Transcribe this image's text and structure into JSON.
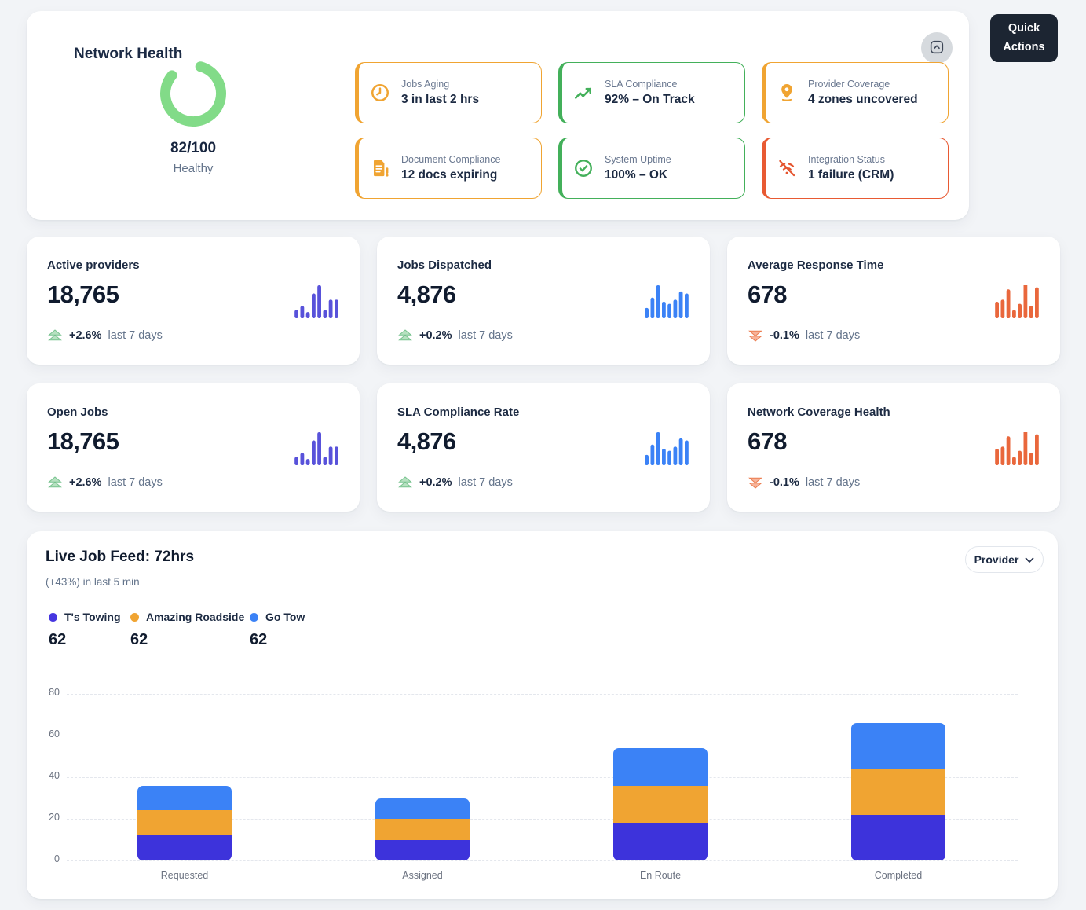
{
  "health": {
    "title": "Network Health",
    "gauge": {
      "score": "82/100",
      "status": "Healthy",
      "value": 82,
      "max": 100,
      "color": "#82db88"
    },
    "tiles": [
      {
        "label": "Jobs Aging",
        "value": "3 in last 2 hrs",
        "color": "#f0a432",
        "icon": "clock-icon"
      },
      {
        "label": "SLA Compliance",
        "value": "92% – On Track",
        "color": "#43b05a",
        "icon": "trend-chart-icon"
      },
      {
        "label": "Provider Coverage",
        "value": "4 zones uncovered",
        "color": "#f0a432",
        "icon": "location-pin-icon"
      },
      {
        "label": "Document Compliance",
        "value": "12 docs expiring",
        "color": "#f0a432",
        "icon": "document-alert-icon"
      },
      {
        "label": "System Uptime",
        "value": "100% – OK",
        "color": "#43b05a",
        "icon": "check-circle-icon"
      },
      {
        "label": "Integration Status",
        "value": "1 failure (CRM)",
        "color": "#e85a33",
        "icon": "antenna-slash-icon"
      }
    ]
  },
  "quick_actions_label": "Quick Actions",
  "kpis": [
    {
      "title": "Active providers",
      "value": "18,765",
      "delta": "+2.6%",
      "delta_dir": "up",
      "period": "last 7 days",
      "spark_color": "#5852da",
      "spark": [
        2,
        3,
        1.5,
        6,
        8,
        2,
        4.5,
        4.5
      ]
    },
    {
      "title": "Jobs Dispatched",
      "value": "4,876",
      "delta": "+0.2%",
      "delta_dir": "up",
      "period": "last 7 days",
      "spark_color": "#3b82f6",
      "spark": [
        2.5,
        5,
        8,
        4,
        3.5,
        4.5,
        6.5,
        6
      ]
    },
    {
      "title": "Average Response Time",
      "value": "678",
      "delta": "-0.1%",
      "delta_dir": "down",
      "period": "last 7 days",
      "spark_color": "#e9673c",
      "spark": [
        4,
        4.5,
        7,
        2,
        3.5,
        8.5,
        3,
        7.5
      ]
    },
    {
      "title": "Open Jobs",
      "value": "18,765",
      "delta": "+2.6%",
      "delta_dir": "up",
      "period": "last 7 days",
      "spark_color": "#5852da",
      "spark": [
        2,
        3,
        1.5,
        6,
        8,
        2,
        4.5,
        4.5
      ]
    },
    {
      "title": "SLA Compliance Rate",
      "value": "4,876",
      "delta": "+0.2%",
      "delta_dir": "up",
      "period": "last 7 days",
      "spark_color": "#3b82f6",
      "spark": [
        2.5,
        5,
        8,
        4,
        3.5,
        4.5,
        6.5,
        6
      ]
    },
    {
      "title": "Network Coverage Health",
      "value": "678",
      "delta": "-0.1%",
      "delta_dir": "down",
      "period": "last 7 days",
      "spark_color": "#e9673c",
      "spark": [
        4,
        4.5,
        7,
        2,
        3.5,
        8.5,
        3,
        7.5
      ]
    }
  ],
  "live_feed": {
    "title": "Live Job Feed: 72hrs",
    "subtitle": "(+43%) in last 5 min",
    "filter_label": "Provider",
    "legend": [
      {
        "name": "T's Towing",
        "total": "62",
        "color": "#4636e0"
      },
      {
        "name": "Amazing Roadside",
        "total": "62",
        "color": "#f0a432"
      },
      {
        "name": "Go Tow",
        "total": "62",
        "color": "#3b82f6"
      }
    ]
  },
  "chart_data": {
    "type": "bar",
    "stacked": true,
    "title": "Live Job Feed: 72hrs",
    "categories": [
      "Requested",
      "Assigned",
      "En Route",
      "Completed"
    ],
    "series": [
      {
        "name": "T's Towing",
        "color": "#3d33db",
        "values": [
          12,
          10,
          18,
          22
        ]
      },
      {
        "name": "Amazing Roadside",
        "color": "#f0a432",
        "values": [
          12,
          10,
          18,
          22
        ]
      },
      {
        "name": "Go Tow",
        "color": "#3b82f6",
        "values": [
          12,
          10,
          18,
          22
        ]
      }
    ],
    "ylim": [
      0,
      80
    ],
    "yticks": [
      0,
      20,
      40,
      60,
      80
    ],
    "grid": "horizontal-dashed",
    "legend_position": "top-left"
  }
}
